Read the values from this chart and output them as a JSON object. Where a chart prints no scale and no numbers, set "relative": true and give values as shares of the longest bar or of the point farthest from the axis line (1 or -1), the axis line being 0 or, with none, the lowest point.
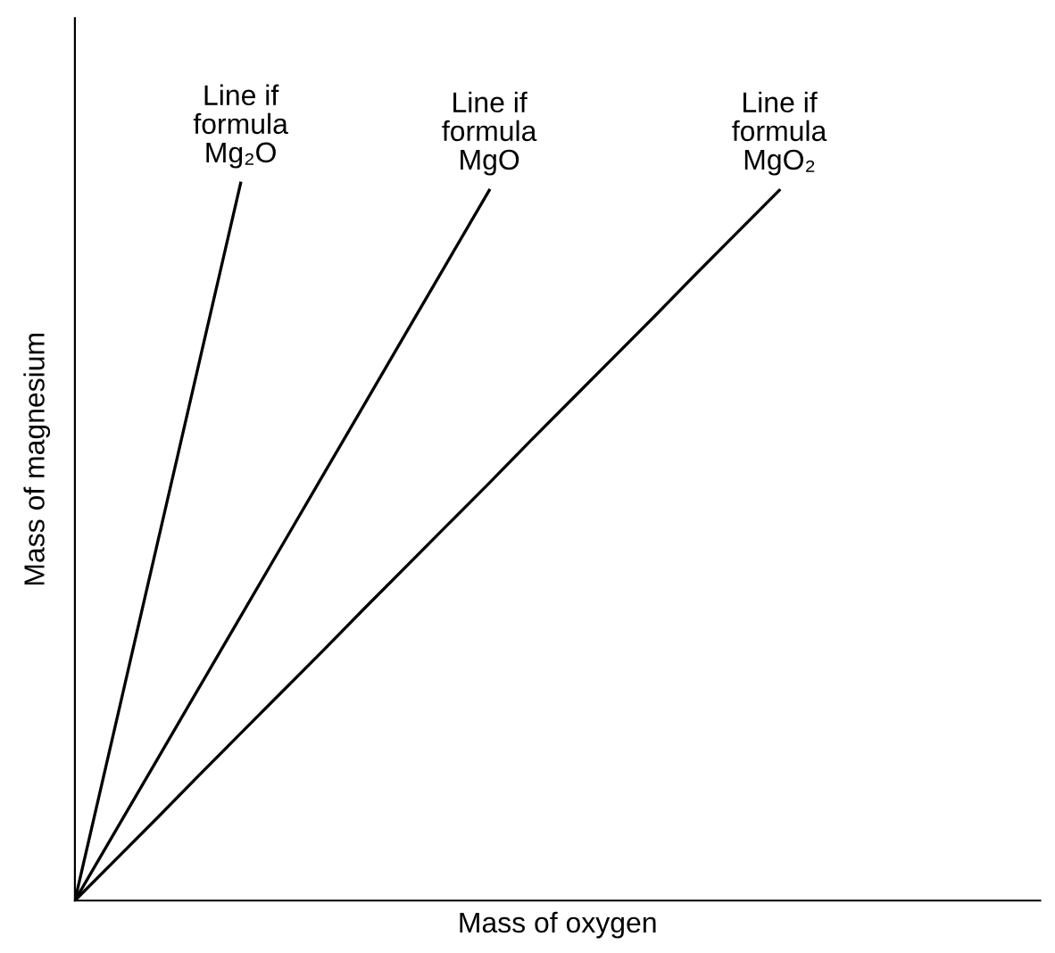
{
  "chart_data": {
    "type": "line",
    "relative": true,
    "xlabel": "Mass of oxygen",
    "ylabel": "Mass of magnesium",
    "categories": [
      null,
      null,
      null,
      null,
      null,
      null,
      null,
      null,
      null,
      null,
      null,
      null,
      null,
      null,
      null,
      null,
      null,
      null,
      null,
      null,
      null,
      null,
      null,
      null
    ],
    "series": [
      {
        "values": [
          0,
          0.25,
          0.5,
          0.75,
          1,
          null,
          null,
          null,
          null,
          null,
          null,
          null,
          null,
          null,
          null,
          null,
          null,
          null,
          null,
          null,
          null,
          null,
          null,
          null
        ],
        "color": "#000000"
      },
      {
        "values": [
          0,
          0.099,
          0.198,
          0.297,
          0.396,
          0.495,
          0.594,
          0.693,
          0.792,
          0.891,
          0.99,
          null,
          null,
          null,
          null,
          null,
          null,
          null,
          null,
          null,
          null,
          null,
          null,
          null
        ],
        "color": "#000000"
      },
      {
        "values": [
          0,
          0.058,
          0.116,
          0.175,
          0.233,
          0.291,
          0.349,
          0.408,
          0.466,
          0.524,
          0.582,
          0.641,
          0.699,
          0.757,
          0.815,
          0.874,
          0.932,
          0.99,
          null,
          null,
          null,
          null,
          null,
          null
        ],
        "color": "#000000"
      }
    ],
    "annotations": [
      "Line if\nformula\nMg₂O",
      "Line if\nformula\nMgO",
      "Line if\nformula\nMgO₂"
    ],
    "marker": "none",
    "line_style": "solid",
    "legend": false
  }
}
